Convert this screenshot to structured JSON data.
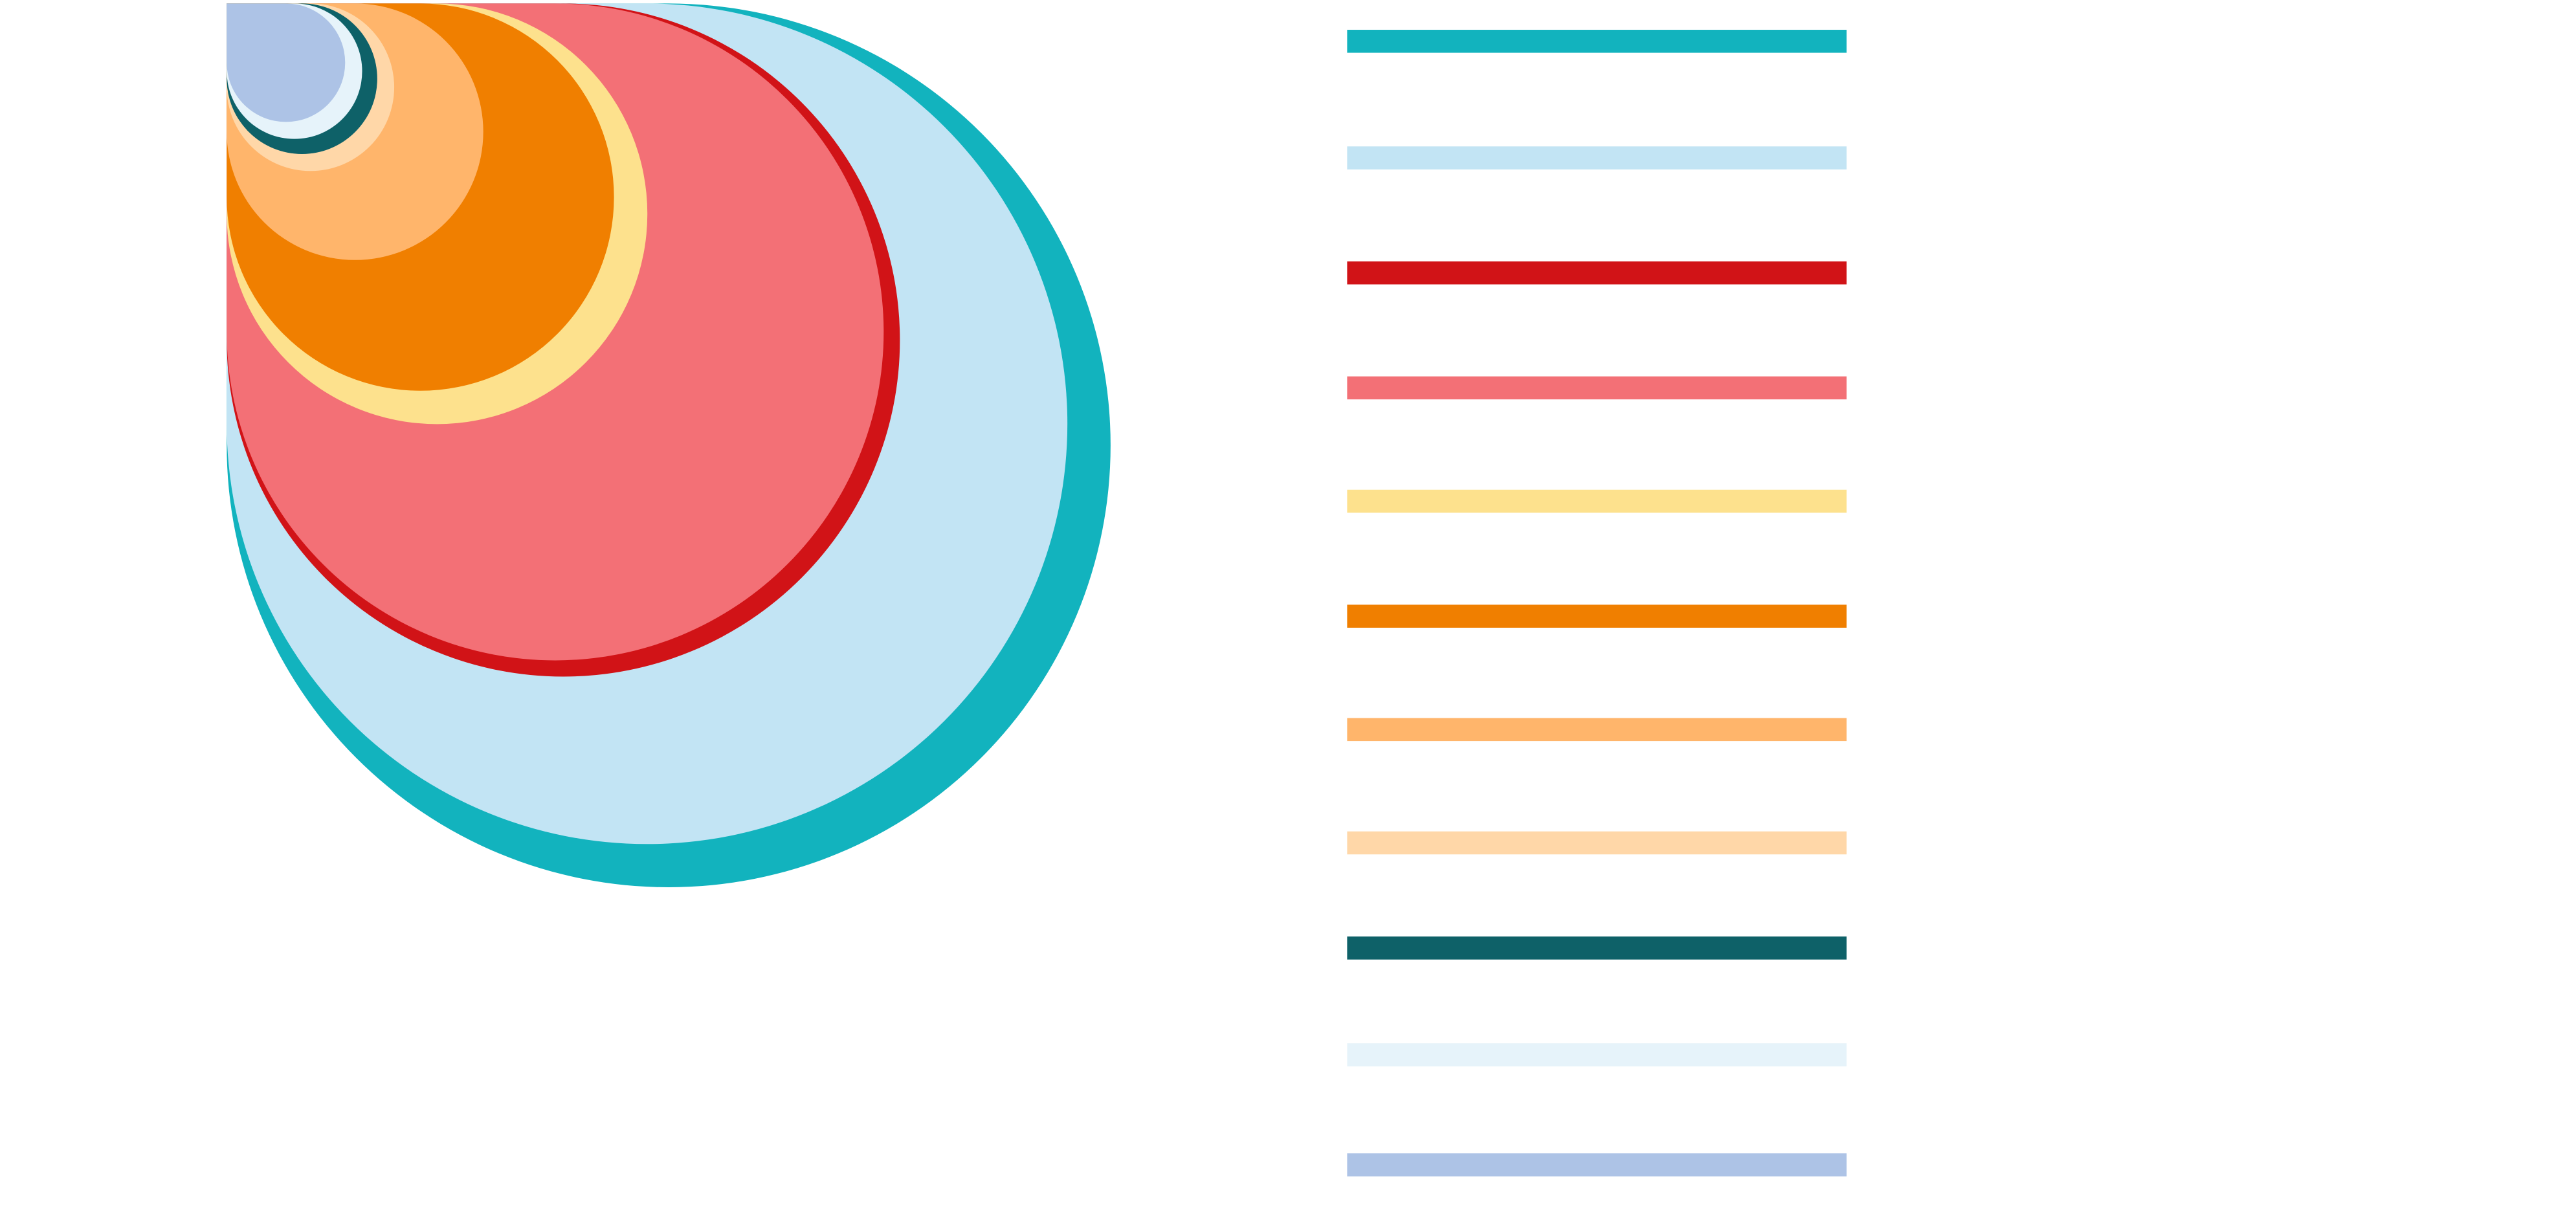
{
  "chart_data": {
    "type": "nested-bubble",
    "series": [
      {
        "color": "#12b3be",
        "values": [
          724
        ]
      },
      {
        "color": "#c2e4f4",
        "values": [
          655
        ]
      },
      {
        "color": "#d11317",
        "values": [
          420
        ]
      },
      {
        "color": "#f37076",
        "values": [
          400
        ]
      },
      {
        "color": "#fde18d",
        "values": [
          164
        ]
      },
      {
        "color": "#f07f00",
        "values": [
          139
        ]
      },
      {
        "color": "#ffb56b",
        "values": [
          61
        ]
      },
      {
        "color": "#ffd7a8",
        "values": [
          26
        ]
      },
      {
        "color": "#0e6168",
        "values": [
          21
        ]
      },
      {
        "color": "#e6f3fa",
        "values": [
          17
        ]
      },
      {
        "color": "#adc3e6",
        "values": [
          13
        ]
      }
    ]
  }
}
